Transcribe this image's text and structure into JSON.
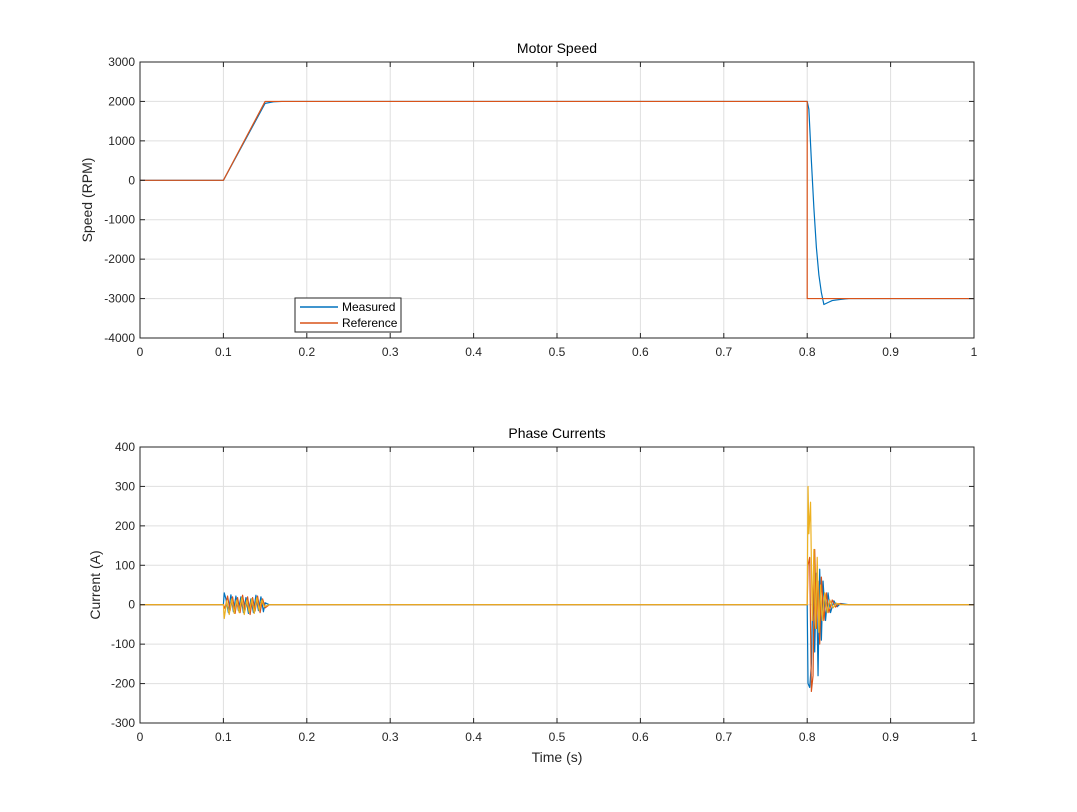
{
  "chart_data": [
    {
      "type": "line",
      "title": "Motor Speed",
      "xlabel": "",
      "ylabel": "Speed (RPM)",
      "xlim": [
        0,
        1
      ],
      "ylim": [
        -4000,
        3000
      ],
      "xticks": [
        0,
        0.1,
        0.2,
        0.3,
        0.4,
        0.5,
        0.6,
        0.7,
        0.8,
        0.9,
        1
      ],
      "xtick_labels": [
        "0",
        "0.1",
        "0.2",
        "0.3",
        "0.4",
        "0.5",
        "0.6",
        "0.7",
        "0.8",
        "0.9",
        "1"
      ],
      "yticks": [
        -4000,
        -3000,
        -2000,
        -1000,
        0,
        1000,
        2000,
        3000
      ],
      "ytick_labels": [
        "-4000",
        "-3000",
        "-2000",
        "-1000",
        "0",
        "1000",
        "2000",
        "3000"
      ],
      "grid": true,
      "legend": "bottom-left",
      "series": [
        {
          "name": "Measured",
          "color": "#0072BD",
          "x": [
            0,
            0.1,
            0.15,
            0.16,
            0.17,
            0.8,
            0.802,
            0.805,
            0.808,
            0.811,
            0.814,
            0.817,
            0.82,
            0.825,
            0.83,
            0.84,
            0.85,
            0.87,
            1
          ],
          "y": [
            0,
            0,
            1950,
            1990,
            2000,
            2000,
            1800,
            500,
            -700,
            -1700,
            -2400,
            -2850,
            -3150,
            -3100,
            -3050,
            -3020,
            -3000,
            -3000,
            -3000
          ]
        },
        {
          "name": "Reference",
          "color": "#D95319",
          "x": [
            0,
            0.1,
            0.15,
            0.16,
            0.8,
            0.8,
            1
          ],
          "y": [
            0,
            0,
            2000,
            2000,
            2000,
            -3000,
            -3000
          ]
        }
      ]
    },
    {
      "type": "line",
      "title": "Phase Currents",
      "xlabel": "Time (s)",
      "ylabel": "Current (A)",
      "xlim": [
        0,
        1
      ],
      "ylim": [
        -300,
        400
      ],
      "xticks": [
        0,
        0.1,
        0.2,
        0.3,
        0.4,
        0.5,
        0.6,
        0.7,
        0.8,
        0.9,
        1
      ],
      "xtick_labels": [
        "0",
        "0.1",
        "0.2",
        "0.3",
        "0.4",
        "0.5",
        "0.6",
        "0.7",
        "0.8",
        "0.9",
        "1"
      ],
      "yticks": [
        -300,
        -200,
        -100,
        0,
        100,
        200,
        300,
        400
      ],
      "ytick_labels": [
        "-300",
        "-200",
        "-100",
        "0",
        "100",
        "200",
        "300",
        "400"
      ],
      "grid": true,
      "series": [
        {
          "color": "#0072BD",
          "x": [
            0,
            0.1,
            0.101,
            0.103,
            0.106,
            0.109,
            0.112,
            0.115,
            0.118,
            0.121,
            0.124,
            0.127,
            0.13,
            0.133,
            0.136,
            0.139,
            0.142,
            0.145,
            0.148,
            0.15,
            0.155,
            0.8,
            0.801,
            0.803,
            0.805,
            0.807,
            0.809,
            0.811,
            0.813,
            0.815,
            0.817,
            0.819,
            0.822,
            0.825,
            0.828,
            0.832,
            0.836,
            0.84,
            0.85,
            0.9,
            1
          ],
          "y": [
            0,
            0,
            30,
            15,
            -20,
            25,
            -18,
            22,
            -15,
            20,
            -20,
            18,
            -22,
            15,
            -20,
            24,
            -15,
            20,
            -18,
            5,
            0,
            0,
            -200,
            -210,
            -150,
            40,
            -120,
            80,
            -180,
            90,
            -90,
            60,
            -40,
            30,
            -20,
            10,
            -5,
            3,
            0,
            0,
            0
          ]
        },
        {
          "color": "#D95319",
          "x": [
            0,
            0.1,
            0.102,
            0.105,
            0.108,
            0.111,
            0.114,
            0.117,
            0.12,
            0.123,
            0.126,
            0.129,
            0.132,
            0.135,
            0.138,
            0.141,
            0.144,
            0.147,
            0.15,
            0.155,
            0.8,
            0.801,
            0.803,
            0.805,
            0.807,
            0.809,
            0.811,
            0.813,
            0.815,
            0.817,
            0.82,
            0.823,
            0.826,
            0.83,
            0.834,
            0.838,
            0.845,
            0.9,
            1
          ],
          "y": [
            0,
            0,
            -10,
            22,
            -15,
            20,
            -22,
            18,
            -20,
            24,
            -14,
            20,
            -25,
            18,
            -16,
            22,
            -20,
            15,
            -8,
            0,
            0,
            100,
            120,
            -220,
            -180,
            140,
            -60,
            60,
            -100,
            70,
            -40,
            30,
            -20,
            12,
            -6,
            3,
            0,
            0,
            0
          ]
        },
        {
          "color": "#EDB120",
          "x": [
            0,
            0.1,
            0.101,
            0.104,
            0.107,
            0.11,
            0.113,
            0.116,
            0.119,
            0.122,
            0.125,
            0.128,
            0.131,
            0.134,
            0.137,
            0.14,
            0.143,
            0.146,
            0.149,
            0.155,
            0.8,
            0.801,
            0.802,
            0.804,
            0.806,
            0.808,
            0.81,
            0.812,
            0.814,
            0.816,
            0.818,
            0.821,
            0.824,
            0.827,
            0.831,
            0.835,
            0.84,
            0.85,
            0.9,
            1
          ],
          "y": [
            0,
            0,
            -35,
            10,
            -25,
            15,
            -22,
            12,
            -20,
            18,
            -25,
            12,
            -20,
            15,
            -22,
            18,
            -15,
            12,
            -5,
            0,
            0,
            300,
            180,
            260,
            -40,
            140,
            -60,
            120,
            -70,
            50,
            -40,
            30,
            -20,
            12,
            -8,
            4,
            0,
            0,
            0,
            0
          ]
        }
      ]
    }
  ]
}
